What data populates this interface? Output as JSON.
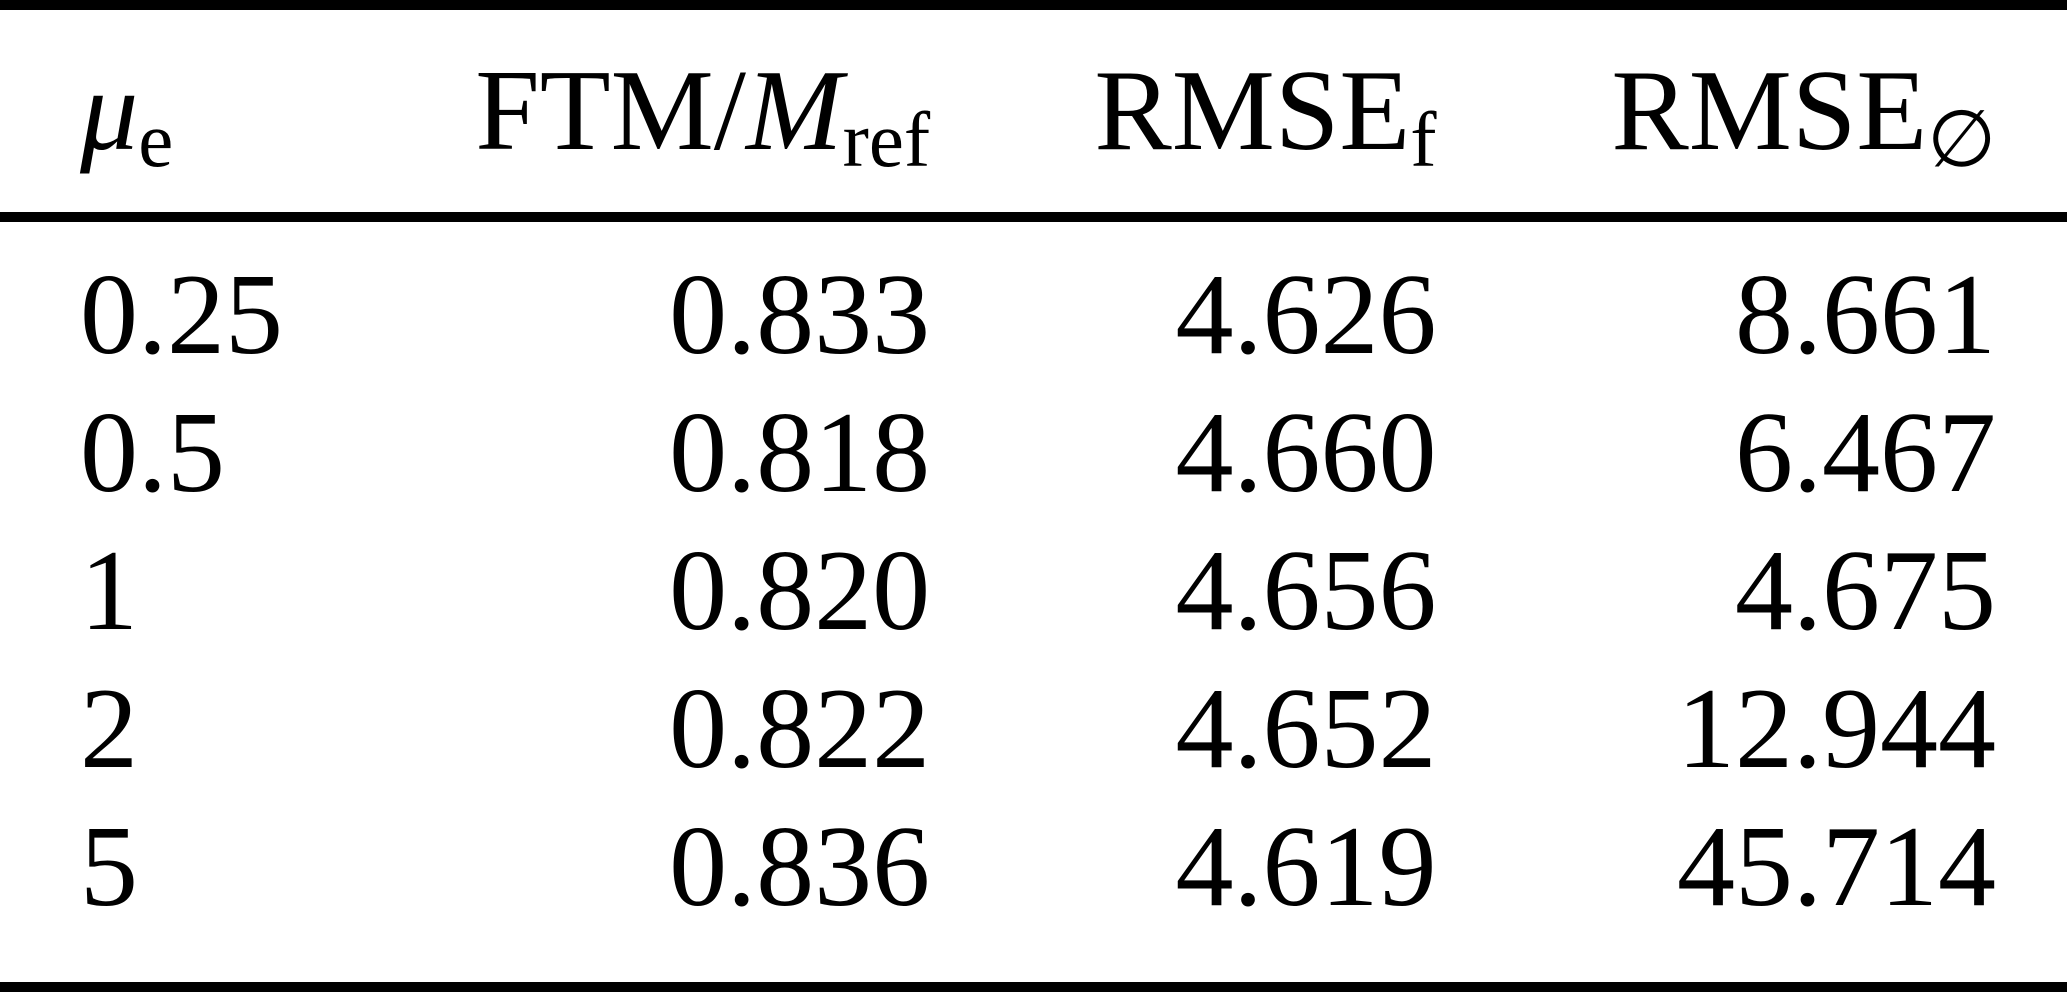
{
  "page": {
    "background": "#ffffff",
    "text_color": "#000000",
    "rule_color": "#000000"
  },
  "table": {
    "header": [
      {
        "main": "μ",
        "sub": "e"
      },
      {
        "pre": "FTM/",
        "var": "M",
        "sub": "ref"
      },
      {
        "main": "RMSE",
        "sub": "f"
      },
      {
        "main": "RMSE",
        "sub": "∅"
      }
    ],
    "rows": [
      [
        "0.25",
        "0.833",
        "4.626",
        "8.661"
      ],
      [
        "0.5",
        "0.818",
        "4.660",
        "6.467"
      ],
      [
        "1",
        "0.820",
        "4.656",
        "4.675"
      ],
      [
        "2",
        "0.822",
        "4.652",
        "12.944"
      ],
      [
        "5",
        "0.836",
        "4.619",
        "45.714"
      ]
    ]
  },
  "chart_data": {
    "type": "table",
    "columns": [
      "μ_e",
      "FTM/M_ref",
      "RMSE_f",
      "RMSE_∅"
    ],
    "rows": [
      [
        0.25,
        0.833,
        4.626,
        8.661
      ],
      [
        0.5,
        0.818,
        4.66,
        6.467
      ],
      [
        1,
        0.82,
        4.656,
        4.675
      ],
      [
        2,
        0.822,
        4.652,
        12.944
      ],
      [
        5,
        0.836,
        4.619,
        45.714
      ]
    ]
  }
}
